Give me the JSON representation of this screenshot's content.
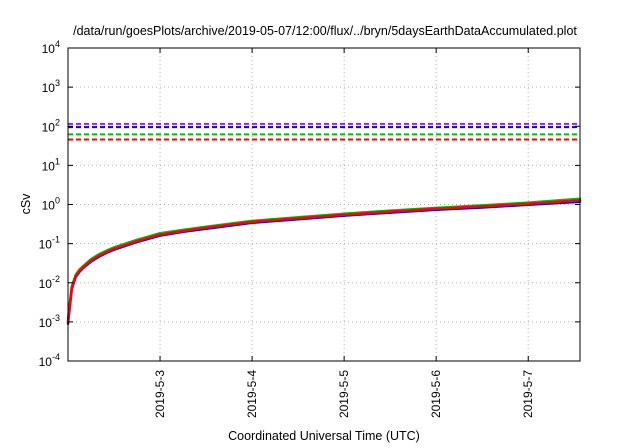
{
  "chart_data": {
    "type": "line",
    "title": "/data/run/goesPlots/archive/2019-05-07/12:00/flux/../bryn/5daysEarthDataAccumulated.plot",
    "xlabel": "Coordinated Universal Time (UTC)",
    "ylabel": "cSv",
    "yscale": "log",
    "ylim": [
      0.0001,
      10000
    ],
    "xlim": [
      "2019-05-02T00:00",
      "2019-05-07T13:30"
    ],
    "grid": true,
    "legend": "none",
    "x_ticks": [
      "2019-5-3",
      "2019-5-4",
      "2019-5-5",
      "2019-5-6",
      "2019-5-7"
    ],
    "y_ticks": [
      {
        "value": 0.0001,
        "base": "10",
        "exp": "-4"
      },
      {
        "value": 0.001,
        "base": "10",
        "exp": "-3"
      },
      {
        "value": 0.01,
        "base": "10",
        "exp": "-2"
      },
      {
        "value": 0.1,
        "base": "10",
        "exp": "-1"
      },
      {
        "value": 1,
        "base": "10",
        "exp": "0"
      },
      {
        "value": 10,
        "base": "10",
        "exp": "1"
      },
      {
        "value": 100,
        "base": "10",
        "exp": "2"
      },
      {
        "value": 1000,
        "base": "10",
        "exp": "3"
      },
      {
        "value": 10000,
        "base": "10",
        "exp": "4"
      }
    ],
    "thresholds": [
      {
        "value": 115,
        "color": "#a020f0"
      },
      {
        "value": 95,
        "color": "#0000ff"
      },
      {
        "value": 62,
        "color": "#00c000"
      },
      {
        "value": 46,
        "color": "#ff0000"
      }
    ],
    "series": [
      {
        "color": "#00c000",
        "x": [
          "2019-05-02T00:00",
          "2019-05-02T01:00",
          "2019-05-02T02:00",
          "2019-05-02T03:00",
          "2019-05-02T04:00",
          "2019-05-02T06:00",
          "2019-05-02T08:00",
          "2019-05-02T10:00",
          "2019-05-02T12:00",
          "2019-05-02T15:00",
          "2019-05-02T18:00",
          "2019-05-03T00:00",
          "2019-05-03T06:00",
          "2019-05-03T12:00",
          "2019-05-04T00:00",
          "2019-05-04T12:00",
          "2019-05-05T00:00",
          "2019-05-05T12:00",
          "2019-05-06T00:00",
          "2019-05-06T12:00",
          "2019-05-07T00:00",
          "2019-05-07T13:30"
        ],
        "y": [
          0.0012,
          0.008,
          0.016,
          0.022,
          0.027,
          0.04,
          0.053,
          0.066,
          0.08,
          0.1,
          0.125,
          0.185,
          0.225,
          0.27,
          0.38,
          0.47,
          0.58,
          0.7,
          0.82,
          0.95,
          1.12,
          1.4
        ]
      },
      {
        "color": "#0000ff",
        "x": [
          "2019-05-02T00:00",
          "2019-05-02T01:00",
          "2019-05-02T02:00",
          "2019-05-02T03:00",
          "2019-05-02T04:00",
          "2019-05-02T06:00",
          "2019-05-02T08:00",
          "2019-05-02T10:00",
          "2019-05-02T12:00",
          "2019-05-02T15:00",
          "2019-05-02T18:00",
          "2019-05-03T00:00",
          "2019-05-03T06:00",
          "2019-05-03T12:00",
          "2019-05-04T00:00",
          "2019-05-04T12:00",
          "2019-05-05T00:00",
          "2019-05-05T12:00",
          "2019-05-06T00:00",
          "2019-05-06T12:00",
          "2019-05-07T00:00",
          "2019-05-07T13:30"
        ],
        "y": [
          0.0009,
          0.007,
          0.014,
          0.019,
          0.024,
          0.035,
          0.046,
          0.058,
          0.07,
          0.088,
          0.11,
          0.16,
          0.2,
          0.24,
          0.34,
          0.42,
          0.52,
          0.62,
          0.73,
          0.84,
          0.98,
          1.18
        ]
      },
      {
        "color": "#ff0000",
        "x": [
          "2019-05-02T00:00",
          "2019-05-02T01:00",
          "2019-05-02T02:00",
          "2019-05-02T03:00",
          "2019-05-02T04:00",
          "2019-05-02T06:00",
          "2019-05-02T08:00",
          "2019-05-02T10:00",
          "2019-05-02T12:00",
          "2019-05-02T15:00",
          "2019-05-02T18:00",
          "2019-05-03T00:00",
          "2019-05-03T06:00",
          "2019-05-03T12:00",
          "2019-05-04T00:00",
          "2019-05-04T12:00",
          "2019-05-05T00:00",
          "2019-05-05T12:00",
          "2019-05-06T00:00",
          "2019-05-06T12:00",
          "2019-05-07T00:00",
          "2019-05-07T13:30"
        ],
        "y": [
          0.001,
          0.0075,
          0.015,
          0.02,
          0.025,
          0.037,
          0.049,
          0.061,
          0.074,
          0.093,
          0.116,
          0.17,
          0.21,
          0.255,
          0.36,
          0.445,
          0.55,
          0.66,
          0.775,
          0.895,
          1.05,
          1.28
        ]
      }
    ]
  }
}
